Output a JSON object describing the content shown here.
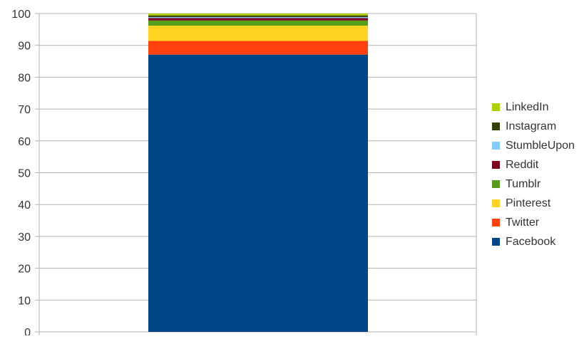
{
  "chart_data": {
    "type": "bar",
    "stacked": true,
    "categories": [
      ""
    ],
    "title": "",
    "xlabel": "",
    "ylabel": "",
    "ylim": [
      0,
      100
    ],
    "yticks": [
      "0",
      "10",
      "20",
      "30",
      "40",
      "50",
      "60",
      "70",
      "80",
      "90",
      "100"
    ],
    "grid": true,
    "legend_position": "right",
    "series": [
      {
        "name": "Facebook",
        "values": [
          87.1
        ],
        "color": "#004586"
      },
      {
        "name": "Twitter",
        "values": [
          4.3
        ],
        "color": "#ff420e"
      },
      {
        "name": "Pinterest",
        "values": [
          4.8
        ],
        "color": "#ffd320"
      },
      {
        "name": "Tumblr",
        "values": [
          1.6
        ],
        "color": "#579d1c"
      },
      {
        "name": "Reddit",
        "values": [
          0.8
        ],
        "color": "#7e0021"
      },
      {
        "name": "StumbleUpon",
        "values": [
          0.3
        ],
        "color": "#83caff"
      },
      {
        "name": "Instagram",
        "values": [
          0.5
        ],
        "color": "#314004"
      },
      {
        "name": "LinkedIn",
        "values": [
          0.6
        ],
        "color": "#aecf00"
      }
    ],
    "legend_order": [
      "LinkedIn",
      "Instagram",
      "StumbleUpon",
      "Reddit",
      "Tumblr",
      "Pinterest",
      "Twitter",
      "Facebook"
    ]
  }
}
